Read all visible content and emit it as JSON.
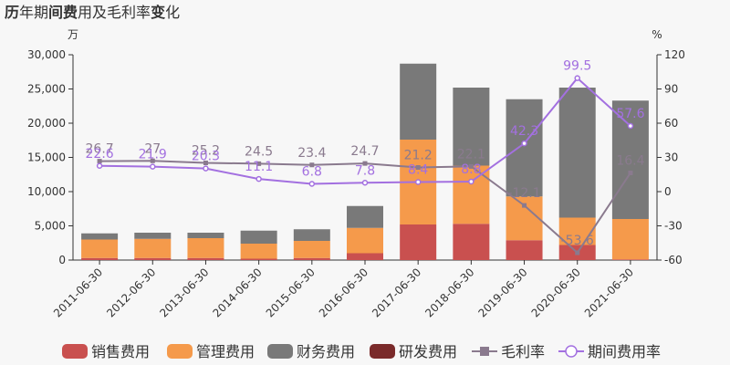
{
  "chart_data": {
    "type": "bar",
    "title_parts": [
      {
        "text": "历",
        "bold": true
      },
      {
        "text": "年期",
        "bold": false
      },
      {
        "text": "间费",
        "bold": true
      },
      {
        "text": "用及毛利率",
        "bold": false
      },
      {
        "text": "变",
        "bold": true
      },
      {
        "text": "化",
        "bold": false
      }
    ],
    "y_unit_left": "万",
    "y_unit_right": "%",
    "categories": [
      "2011-06-30",
      "2012-06-30",
      "2013-06-30",
      "2014-06-30",
      "2015-06-30",
      "2016-06-30",
      "2017-06-30",
      "2018-06-30",
      "2019-06-30",
      "2020-06-30",
      "2021-06-30"
    ],
    "ylim_left": [
      0,
      30000
    ],
    "yticks_left": [
      "0",
      "5,000",
      "10,000",
      "15,000",
      "20,000",
      "25,000",
      "30,000"
    ],
    "ylim_right": [
      -60,
      120
    ],
    "yticks_right": [
      "-60",
      "-30",
      "0",
      "30",
      "60",
      "90",
      "120"
    ],
    "grid": false,
    "legend_position": "bottom",
    "bar_series": [
      {
        "name": "销售费用",
        "color": "#c9504f",
        "values": [
          300,
          300,
          300,
          200,
          300,
          1000,
          5200,
          5300,
          2900,
          2200,
          100
        ]
      },
      {
        "name": "管理费用",
        "color": "#f59a4b",
        "values": [
          2700,
          2800,
          2900,
          2200,
          2500,
          3700,
          12400,
          8500,
          6400,
          4000,
          5900
        ]
      },
      {
        "name": "财务费用",
        "color": "#797979",
        "values": [
          900,
          900,
          800,
          1900,
          1700,
          3200,
          11100,
          11400,
          14200,
          19000,
          17300
        ]
      },
      {
        "name": "研发费用",
        "color": "#7a2a2a",
        "values": [
          0,
          0,
          0,
          0,
          0,
          0,
          0,
          0,
          0,
          0,
          0
        ]
      }
    ],
    "line_series": [
      {
        "name": "毛利率",
        "color": "#8a7a8e",
        "marker": "square",
        "values": [
          26.7,
          27,
          25.2,
          24.5,
          23.4,
          24.7,
          21.2,
          22.1,
          -12.1,
          -53.6,
          16.4
        ],
        "labels": [
          "26.7",
          "27",
          "25.2",
          "24.5",
          "23.4",
          "24.7",
          "21.2",
          "22.1",
          "-12.1",
          "-53.6",
          "16.4"
        ]
      },
      {
        "name": "期间费用率",
        "color": "#a370e0",
        "marker": "circle",
        "values": [
          22.6,
          21.9,
          20.3,
          11.1,
          6.8,
          7.8,
          8.4,
          8.8,
          42.3,
          99.5,
          57.6
        ],
        "labels": [
          "22.6",
          "21.9",
          "20.3",
          "11.1",
          "6.8",
          "7.8",
          "8.4",
          "8.8",
          "42.3",
          "99.5",
          "57.6"
        ]
      }
    ]
  }
}
